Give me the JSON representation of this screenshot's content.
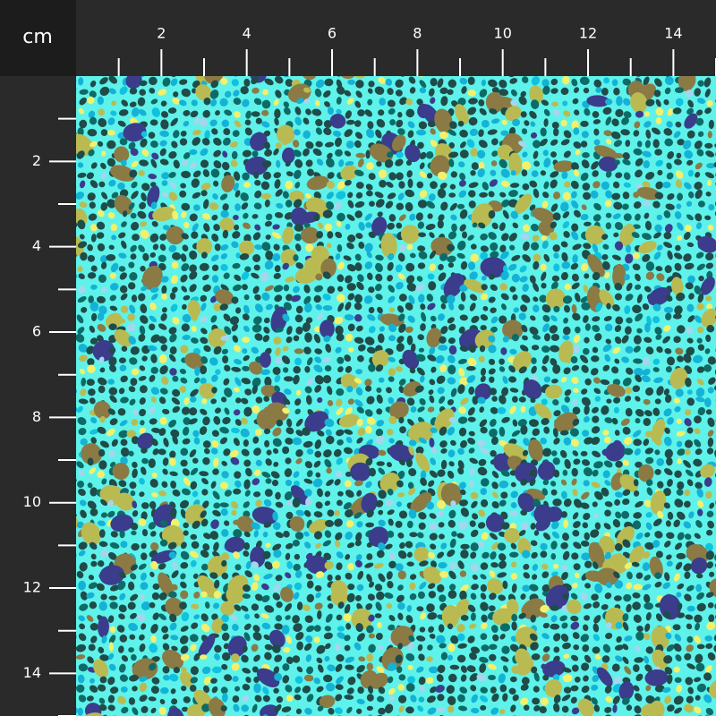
{
  "unit": "cm",
  "top_ruler": {
    "labels": [
      2,
      4,
      6,
      8,
      10,
      12,
      14
    ]
  },
  "left_ruler": {
    "labels": [
      2,
      4,
      6,
      8,
      10,
      12,
      14
    ]
  }
}
